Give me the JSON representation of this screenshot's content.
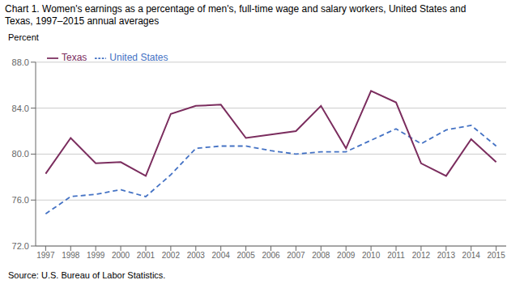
{
  "chart_data": {
    "type": "line",
    "title": [
      "Chart 1. Women's earnings as a percentage of men's, full-time wage and salary workers, United States and",
      "Texas, 1997–2015 annual averages"
    ],
    "ylabel": "Percent",
    "annotations": [
      "Source: U.S. Bureau of Labor Statistics."
    ],
    "x": [
      1997,
      1998,
      1999,
      2000,
      2001,
      2002,
      2003,
      2004,
      2005,
      2006,
      2007,
      2008,
      2009,
      2010,
      2011,
      2012,
      2013,
      2014,
      2015
    ],
    "series": [
      {
        "name": "United States",
        "color": "#4472C4",
        "line_style": "dashed",
        "values": [
          74.8,
          76.3,
          76.5,
          76.9,
          76.3,
          78.2,
          80.5,
          80.7,
          80.7,
          80.3,
          80.0,
          80.2,
          80.2,
          81.2,
          82.2,
          80.9,
          82.1,
          82.5,
          80.7
        ]
      },
      {
        "name": "Texas",
        "color": "#7B2D5E",
        "line_style": "solid",
        "values": [
          78.3,
          81.4,
          79.2,
          79.3,
          78.1,
          83.5,
          84.2,
          84.3,
          81.4,
          81.7,
          82.0,
          84.2,
          80.5,
          85.5,
          84.5,
          79.2,
          78.1,
          81.3,
          79.3
        ]
      }
    ],
    "xlim": [
      1996.6,
      2015.4
    ],
    "xticks": [
      1997,
      1998,
      1999,
      2000,
      2001,
      2002,
      2003,
      2004,
      2005,
      2006,
      2007,
      2008,
      2009,
      2010,
      2011,
      2012,
      2013,
      2014,
      2015
    ],
    "ylim": [
      72,
      88
    ],
    "yticks": [
      {
        "value": 72,
        "label": "72.0"
      },
      {
        "value": 76,
        "label": "76.0"
      },
      {
        "value": 80,
        "label": "80.0"
      },
      {
        "value": 84,
        "label": "84.0"
      },
      {
        "value": 88,
        "label": "88.0"
      }
    ],
    "grid": true,
    "legend": "upper left"
  }
}
